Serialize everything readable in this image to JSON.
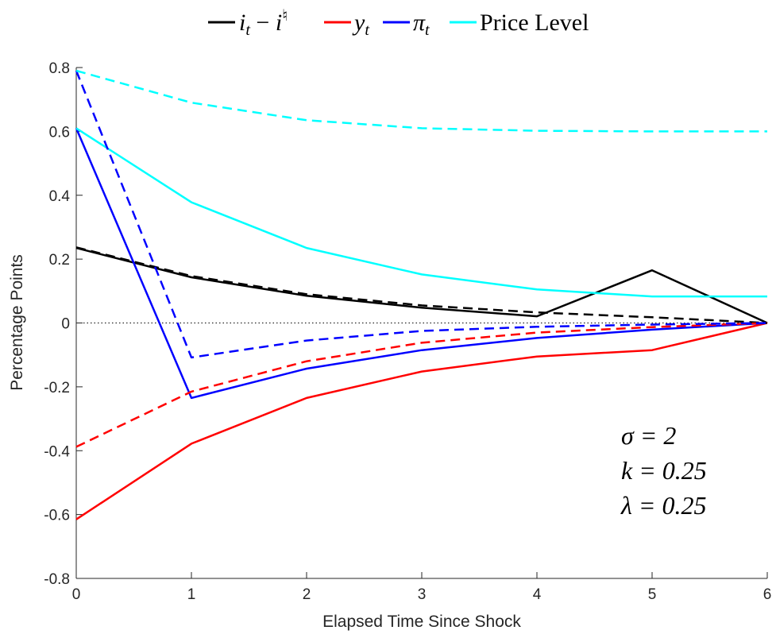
{
  "chart_data": {
    "type": "line",
    "xlabel": "Elapsed Time Since Shock",
    "ylabel": "Percentage Points",
    "xlim": [
      0,
      6
    ],
    "ylim": [
      -0.8,
      0.8
    ],
    "x": [
      0,
      1,
      2,
      3,
      4,
      5,
      6
    ],
    "xticks": [
      "0",
      "1",
      "2",
      "3",
      "4",
      "5",
      "6"
    ],
    "yticks": [
      "-0.8",
      "-0.6",
      "-0.4",
      "-0.2",
      "0",
      "0.2",
      "0.4",
      "0.6",
      "0.8"
    ],
    "ytick_values": [
      -0.8,
      -0.6,
      -0.4,
      -0.2,
      0,
      0.2,
      0.4,
      0.6,
      0.8
    ],
    "grid": false,
    "zero_line": "dotted",
    "legend": {
      "placement": "top-outside",
      "entries": [
        {
          "label": "i_t − i♮",
          "color": "#000000"
        },
        {
          "label": "y_t",
          "color": "#ff0000"
        },
        {
          "label": "π_t",
          "color": "#0000ff"
        },
        {
          "label": "Price Level",
          "color": "#00ffff"
        }
      ]
    },
    "series": [
      {
        "color": "#000000",
        "style": "solid",
        "values": [
          0.235,
          0.143,
          0.085,
          0.048,
          0.021,
          0.165,
          0.0
        ]
      },
      {
        "color": "#ff0000",
        "style": "solid",
        "values": [
          -0.615,
          -0.378,
          -0.235,
          -0.152,
          -0.105,
          -0.085,
          0.0
        ]
      },
      {
        "color": "#0000ff",
        "style": "solid",
        "values": [
          0.61,
          -0.235,
          -0.143,
          -0.085,
          -0.047,
          -0.021,
          0.0
        ]
      },
      {
        "color": "#00ffff",
        "style": "solid",
        "values": [
          0.61,
          0.378,
          0.235,
          0.152,
          0.105,
          0.083,
          0.083
        ]
      },
      {
        "color": "#000000",
        "style": "dashed",
        "values": [
          0.237,
          0.147,
          0.09,
          0.055,
          0.033,
          0.018,
          0.0
        ]
      },
      {
        "color": "#ff0000",
        "style": "dashed",
        "values": [
          -0.388,
          -0.215,
          -0.12,
          -0.062,
          -0.03,
          -0.013,
          0.0
        ]
      },
      {
        "color": "#0000ff",
        "style": "dashed",
        "values": [
          0.79,
          -0.108,
          -0.055,
          -0.025,
          -0.012,
          -0.005,
          0.0
        ]
      },
      {
        "color": "#00ffff",
        "style": "dashed",
        "values": [
          0.79,
          0.69,
          0.635,
          0.61,
          0.602,
          0.6,
          0.6
        ]
      }
    ],
    "annotations": [
      "σ = 2",
      "k = 0.25",
      "λ = 0.25"
    ]
  }
}
